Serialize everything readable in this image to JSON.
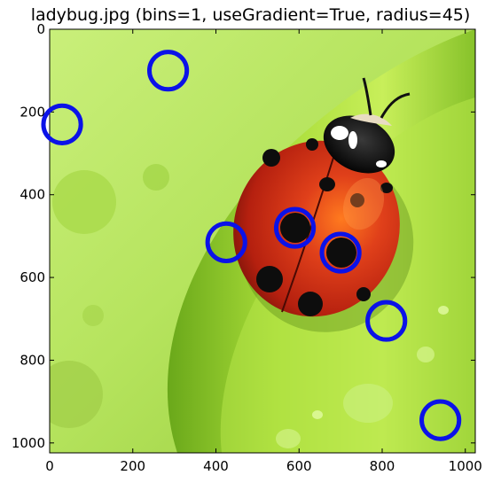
{
  "title": "ladybug.jpg (bins=1, useGradient=True, radius=45)",
  "colors": {
    "circle_stroke": "#0b12e8",
    "leaf_light": "#d6f78a",
    "leaf_mid": "#9ed43a",
    "leaf_dark": "#5f9d12",
    "ladybug_red": "#d92a12",
    "spot": "#0d0d0d"
  },
  "image": {
    "width": 1024,
    "height": 1024,
    "description_icon": "ladybug-on-leaf-photo"
  },
  "axes": {
    "x_ticks": [
      0,
      200,
      400,
      600,
      800,
      1000
    ],
    "y_ticks": [
      0,
      200,
      400,
      600,
      800,
      1000
    ],
    "x_range": [
      0,
      1024
    ],
    "y_range": [
      0,
      1024
    ],
    "y_inverted": true
  },
  "detected_circles": {
    "radius": 45,
    "centers": [
      {
        "x": 285,
        "y": 100
      },
      {
        "x": 30,
        "y": 230
      },
      {
        "x": 425,
        "y": 515
      },
      {
        "x": 590,
        "y": 480
      },
      {
        "x": 700,
        "y": 540
      },
      {
        "x": 810,
        "y": 705
      },
      {
        "x": 940,
        "y": 945
      }
    ]
  }
}
